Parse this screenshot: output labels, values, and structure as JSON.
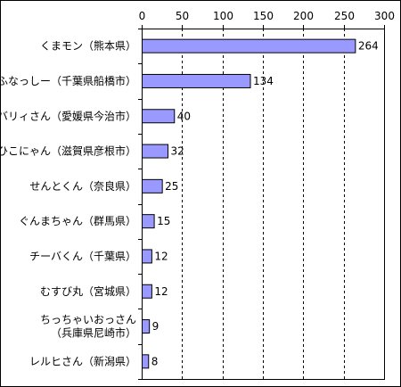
{
  "chart_data": {
    "type": "bar",
    "orientation": "horizontal",
    "categories": [
      "くまモン（熊本県）",
      "ふなっしー（千葉県船橋市）",
      "バリィさん（愛媛県今治市）",
      "ひこにゃん（滋賀県彦根市）",
      "せんとくん（奈良県）",
      "ぐんまちゃん（群馬県）",
      "チーバくん（千葉県）",
      "むすび丸（宮城県）",
      "ちっちゃいおっさん（兵庫県尼崎市）",
      "レルヒさん（新潟県）"
    ],
    "category_lines": [
      [
        "くまモン（熊本県）"
      ],
      [
        "ふなっしー（千葉県船橋市）"
      ],
      [
        "バリィさん（愛媛県今治市）"
      ],
      [
        "ひこにゃん（滋賀県彦根市）"
      ],
      [
        "せんとくん（奈良県）"
      ],
      [
        "ぐんまちゃん（群馬県）"
      ],
      [
        "チーバくん（千葉県）"
      ],
      [
        "むすび丸（宮城県）"
      ],
      [
        "ちっちゃいおっさん",
        "（兵庫県尼崎市）"
      ],
      [
        "レルヒさん（新潟県）"
      ]
    ],
    "values": [
      264,
      134,
      40,
      32,
      25,
      15,
      12,
      12,
      9,
      8
    ],
    "xlim": [
      0,
      300
    ],
    "xticks": [
      0,
      50,
      100,
      150,
      200,
      250,
      300
    ],
    "grid": true,
    "axis_position": "top",
    "bar_color": "#9999ff",
    "data_labels": true
  }
}
